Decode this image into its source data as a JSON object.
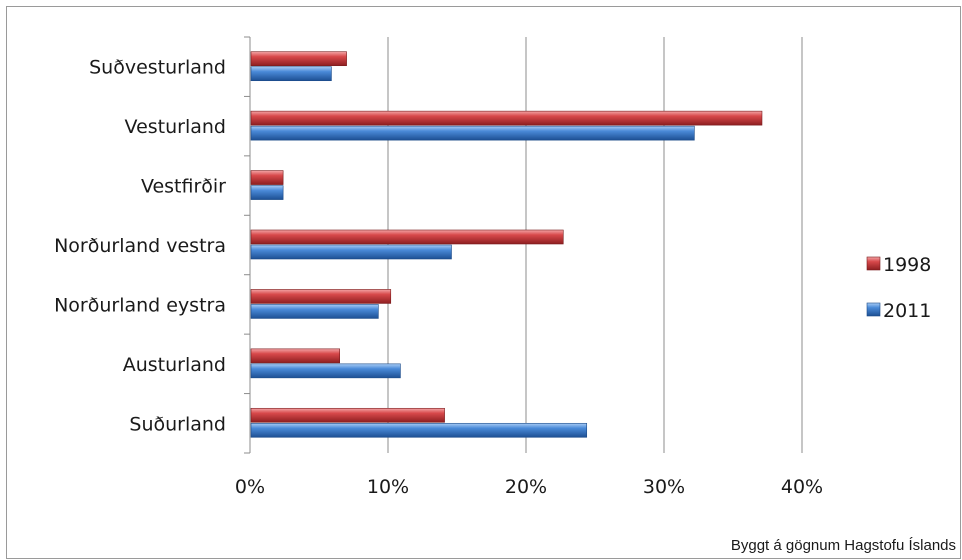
{
  "chart_data": {
    "type": "bar",
    "orientation": "horizontal",
    "categories": [
      "Suðvesturland",
      "Vesturland",
      "Vestfirðir",
      "Norðurland vestra",
      "Norðurland eystra",
      "Austurland",
      "Suðurland"
    ],
    "series": [
      {
        "name": "1998",
        "color": "#c0393b",
        "values": [
          7.0,
          37.1,
          2.4,
          22.7,
          10.2,
          6.5,
          14.1
        ]
      },
      {
        "name": "2011",
        "color": "#3a78c9",
        "values": [
          5.9,
          32.2,
          2.4,
          14.6,
          9.3,
          10.9,
          24.4
        ]
      }
    ],
    "xlim": [
      0,
      40
    ],
    "xticks": [
      "0%",
      "10%",
      "20%",
      "30%",
      "40%"
    ],
    "xtick_values": [
      0,
      10,
      20,
      30,
      40
    ],
    "grid": "vertical",
    "legend": "right"
  },
  "source_note": "Byggt á gögnum Hagstofu Íslands"
}
